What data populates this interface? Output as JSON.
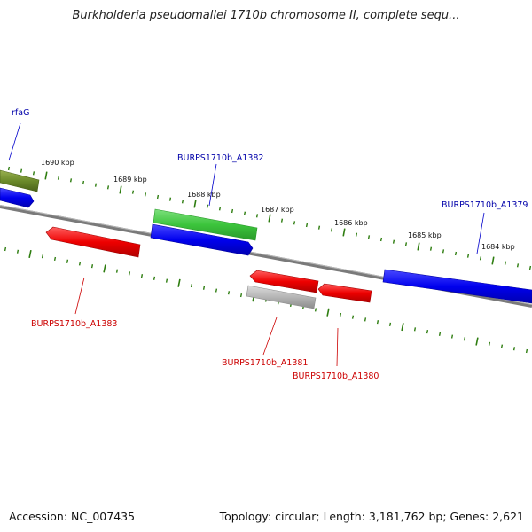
{
  "title": "Burkholderia pseudomallei 1710b chromosome II, complete sequ...",
  "footer": {
    "accession": "Accession: NC_007435",
    "summary": "Topology: circular; Length: 3,181,762 bp; Genes: 2,621"
  },
  "colors": {
    "backbone": "#808080",
    "tick": "#2e7d10",
    "forward_gene": "#0000ee",
    "reverse_gene": "#ee0000",
    "rna_gene": "#3cc43c",
    "other_gene": "#6b8a2a",
    "pseudo_gene": "#b5b5b5",
    "forward_label": "#0000aa",
    "reverse_label": "#cc0000"
  },
  "ticks": [
    "1690 kbp",
    "1689 kbp",
    "1688 kbp",
    "1687 kbp",
    "1686 kbp",
    "1685 kbp",
    "1684 kbp"
  ],
  "genes": {
    "forward": [
      {
        "name": "rfaG",
        "label": "rfaG"
      },
      {
        "name": "BURPS1710b_A1382",
        "label": "BURPS1710b_A1382"
      },
      {
        "name": "BURPS1710b_A1379",
        "label": "BURPS1710b_A1379"
      }
    ],
    "reverse": [
      {
        "name": "BURPS1710b_A1383",
        "label": "BURPS1710b_A1383"
      },
      {
        "name": "BURPS1710b_A1381",
        "label": "BURPS1710b_A1381"
      },
      {
        "name": "BURPS1710b_A1380",
        "label": "BURPS1710b_A1380"
      }
    ]
  }
}
